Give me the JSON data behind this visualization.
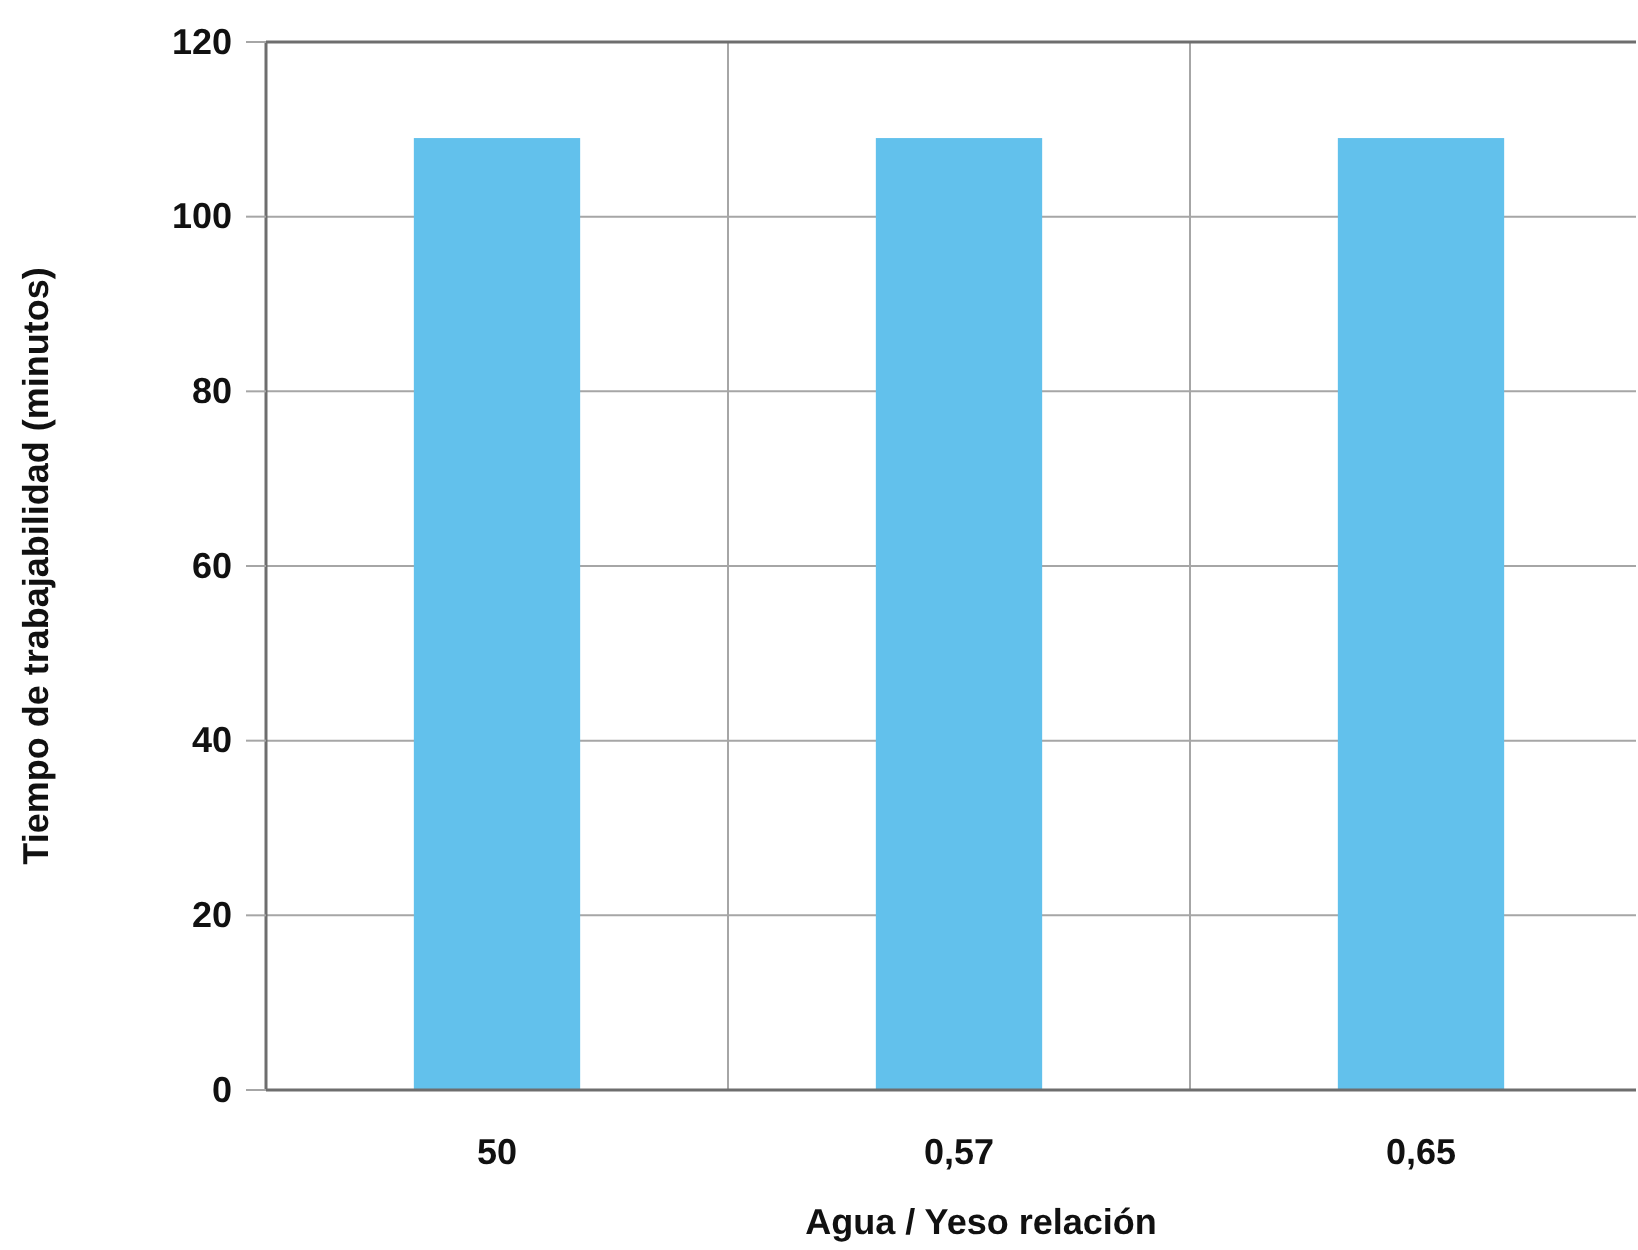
{
  "chart_data": {
    "type": "bar",
    "xlabel": "Agua / Yeso relación",
    "ylabel": "Tiempo de trabajabilidad (minutos)",
    "categories": [
      "50",
      "0,57",
      "0,65"
    ],
    "values": [
      109,
      109,
      109
    ],
    "color": "#62c1ec",
    "ylim": [
      0,
      120
    ],
    "yticks": [
      0,
      20,
      40,
      60,
      80,
      100,
      120
    ],
    "grid": true
  }
}
